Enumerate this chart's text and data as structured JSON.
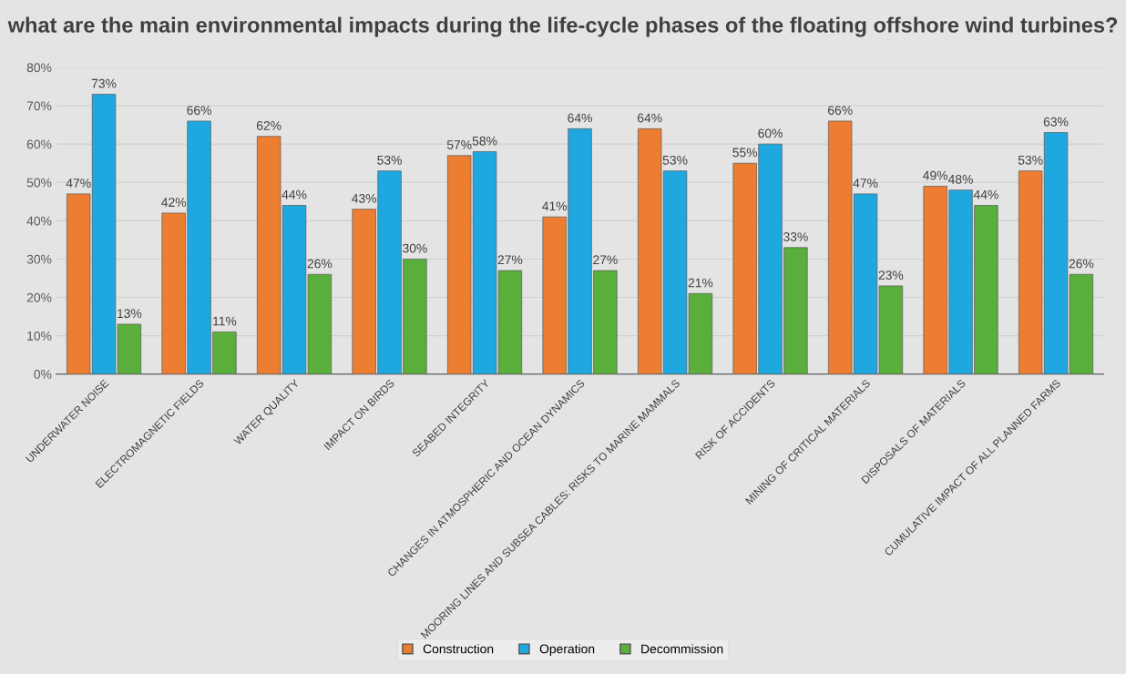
{
  "chart_data": {
    "type": "bar",
    "title": "what are the main environmental impacts during the life-cycle phases of the floating offshore wind turbines?",
    "categories": [
      "UNDERWATER NOISE",
      "ELECTROMAGNETIC FIELDS",
      "WATER QUALITY",
      "IMPACT ON BIRDS",
      "SEABED INTEGRITY",
      "CHANGES IN ATMOSPHERIC AND OCEAN DYNAMICS",
      "MOORING LINES AND SUBSEA CABLES: RISKS TO MARINE MAMMALS",
      "RISK OF ACCIDENTS",
      "MINING OF CRITICAL MATERIALS",
      "DISPOSALS OF MATERIALS",
      "CUMULATIVE IMPACT OF ALL PLANNED FARMS"
    ],
    "series": [
      {
        "name": "Construction",
        "color": "#ed7d31",
        "values": [
          47,
          42,
          62,
          43,
          57,
          41,
          64,
          55,
          66,
          49,
          53
        ],
        "value_labels": [
          "47%",
          "42%",
          "62%",
          "43%",
          "57%",
          "41%",
          "64%",
          "55%",
          "66%",
          "49%",
          "53%"
        ]
      },
      {
        "name": "Operation",
        "color": "#1fa8e0",
        "values": [
          73,
          66,
          44,
          53,
          58,
          64,
          53,
          60,
          47,
          48,
          63
        ],
        "value_labels": [
          "73%",
          "66%",
          "44%",
          "53%",
          "58%",
          "64%",
          "53%",
          "60%",
          "47%",
          "48%",
          "63%"
        ]
      },
      {
        "name": "Decommission",
        "color": "#5aaf3c",
        "values": [
          13,
          11,
          26,
          30,
          27,
          27,
          21,
          33,
          23,
          44,
          26
        ],
        "value_labels": [
          "13%",
          "11%",
          "26%",
          "30%",
          "27%",
          "27%",
          "21%",
          "33%",
          "23%",
          "44%",
          "26%"
        ]
      }
    ],
    "ylim": [
      0,
      80
    ],
    "yticks": [
      {
        "value": 0,
        "label": "0%"
      },
      {
        "value": 10,
        "label": "10%"
      },
      {
        "value": 20,
        "label": "20%"
      },
      {
        "value": 30,
        "label": "30%"
      },
      {
        "value": 40,
        "label": "40%"
      },
      {
        "value": 50,
        "label": "50%"
      },
      {
        "value": 60,
        "label": "60%"
      },
      {
        "value": 70,
        "label": "70%"
      },
      {
        "value": 80,
        "label": "80%"
      }
    ],
    "grid": "y",
    "legend": "bottom"
  }
}
